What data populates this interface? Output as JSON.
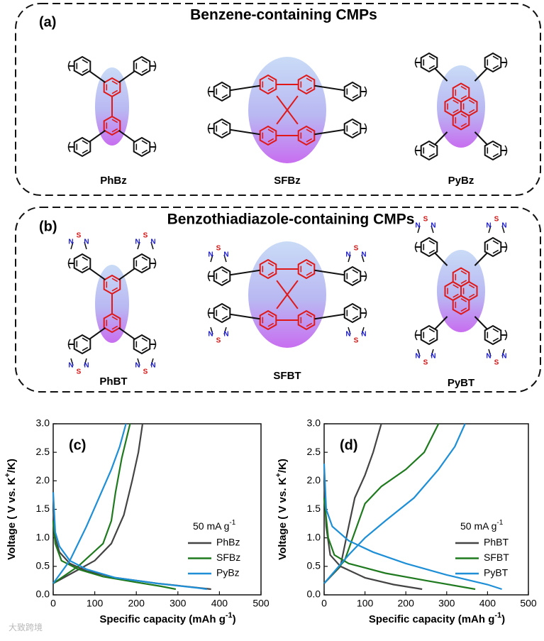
{
  "panels": [
    {
      "label": "(a)",
      "title": "Benzene-containing CMPs",
      "molecules": [
        "PhBz",
        "SFBz",
        "PyBz"
      ]
    },
    {
      "label": "(b)",
      "title": "Benzothiadiazole-containing CMPs",
      "molecules": [
        "PhBT",
        "SFBT",
        "PyBT"
      ],
      "atoms": [
        "N",
        "S"
      ]
    }
  ],
  "chart_data": [
    {
      "type": "line",
      "panel_label": "(c)",
      "x_label": "Specific capacity (mAh g",
      "x_label_sup": "-1",
      "x_label_end": ")",
      "y_label": "Voltage ( V vs. K",
      "y_label_sup": "+",
      "y_label_end": "/K)",
      "legend_title": "50 mA g",
      "legend_title_sup": "-1",
      "legend": "right",
      "xlim": [
        0,
        500
      ],
      "xticks": [
        0,
        100,
        200,
        300,
        400,
        500
      ],
      "ylim": [
        0,
        3
      ],
      "yticks": [
        {
          "value": 0,
          "label": "0.0"
        },
        0.5,
        {
          "value": 1,
          "label": "1.0"
        },
        1.5,
        {
          "value": 2,
          "label": "2.0"
        },
        2.5,
        {
          "value": 3,
          "label": "3.0"
        }
      ],
      "grid": false,
      "series": [
        {
          "name": "PhBz",
          "color": "#444444",
          "x": [
            0,
            5,
            15,
            40,
            80,
            150,
            250,
            330,
            380,
            null,
            0,
            50,
            100,
            140,
            170,
            190,
            205,
            215
          ],
          "values": [
            1.5,
            1.0,
            0.75,
            0.55,
            0.42,
            0.3,
            0.2,
            0.14,
            0.1,
            null,
            0.2,
            0.4,
            0.6,
            0.9,
            1.4,
            2.0,
            2.5,
            3.0
          ]
        },
        {
          "name": "SFBz",
          "color": "#1f7a1f",
          "x": [
            0,
            5,
            20,
            60,
            120,
            200,
            260,
            295,
            null,
            0,
            60,
            120,
            140,
            150,
            165,
            185
          ],
          "values": [
            1.3,
            0.9,
            0.6,
            0.45,
            0.32,
            0.22,
            0.15,
            0.1,
            null,
            0.2,
            0.5,
            0.9,
            1.3,
            1.8,
            2.4,
            3.0
          ]
        },
        {
          "name": "PyBz",
          "color": "#1e8fd6",
          "x": [
            0,
            5,
            15,
            40,
            80,
            150,
            250,
            350,
            370,
            null,
            0,
            40,
            80,
            110,
            140,
            160,
            175
          ],
          "values": [
            1.8,
            1.1,
            0.85,
            0.6,
            0.45,
            0.3,
            0.2,
            0.12,
            0.1,
            null,
            0.2,
            0.6,
            1.2,
            1.7,
            2.2,
            2.6,
            3.0
          ]
        }
      ]
    },
    {
      "type": "line",
      "panel_label": "(d)",
      "x_label": "Specific capacity (mAh g",
      "x_label_sup": "-1",
      "x_label_end": ")",
      "y_label": "Voltage ( V vs. K",
      "y_label_sup": "+",
      "y_label_end": "/K)",
      "legend_title": "50 mA g",
      "legend_title_sup": "-1",
      "legend": "right",
      "xlim": [
        0,
        500
      ],
      "xticks": [
        0,
        100,
        200,
        300,
        400,
        500
      ],
      "ylim": [
        0,
        3
      ],
      "yticks": [
        {
          "value": 0,
          "label": "0.0"
        },
        0.5,
        {
          "value": 1,
          "label": "1.0"
        },
        1.5,
        {
          "value": 2,
          "label": "2.0"
        },
        2.5,
        {
          "value": 3,
          "label": "3.0"
        }
      ],
      "grid": false,
      "series": [
        {
          "name": "PhBT",
          "color": "#444444",
          "x": [
            0,
            5,
            15,
            40,
            100,
            170,
            240,
            null,
            0,
            40,
            60,
            75,
            100,
            120,
            140
          ],
          "values": [
            2.0,
            1.2,
            0.7,
            0.5,
            0.3,
            0.18,
            0.1,
            null,
            0.2,
            0.5,
            1.2,
            1.7,
            2.1,
            2.5,
            3.0
          ]
        },
        {
          "name": "SFBT",
          "color": "#1f7a1f",
          "x": [
            0,
            10,
            25,
            60,
            150,
            250,
            370,
            null,
            0,
            50,
            80,
            100,
            140,
            200,
            245,
            280
          ],
          "values": [
            1.7,
            1.0,
            0.7,
            0.55,
            0.38,
            0.25,
            0.1,
            null,
            0.2,
            0.6,
            1.2,
            1.6,
            1.9,
            2.2,
            2.5,
            3.0
          ]
        },
        {
          "name": "PyBT",
          "color": "#1e8fd6",
          "x": [
            0,
            5,
            20,
            60,
            120,
            200,
            300,
            400,
            435,
            null,
            0,
            60,
            100,
            150,
            220,
            280,
            320,
            345
          ],
          "values": [
            2.3,
            1.5,
            1.2,
            0.95,
            0.75,
            0.55,
            0.35,
            0.18,
            0.1,
            null,
            0.2,
            0.7,
            1.0,
            1.3,
            1.7,
            2.2,
            2.6,
            3.0
          ]
        }
      ]
    }
  ],
  "watermark": "大致跨境"
}
